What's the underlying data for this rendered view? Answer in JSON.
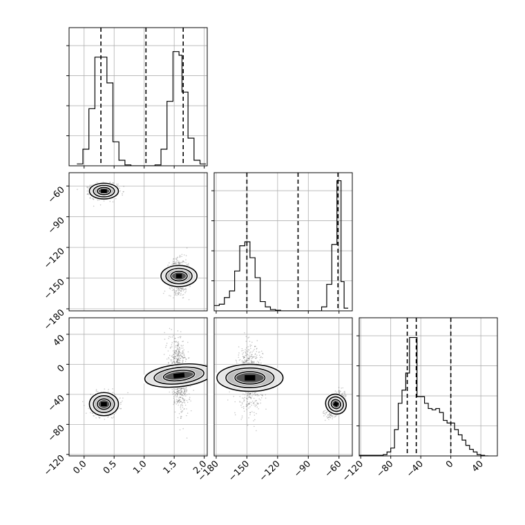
{
  "chart_data": {
    "type": "corner",
    "parameters": [
      "",
      "",
      ""
    ],
    "ranges": [
      [
        -0.25,
        2.05
      ],
      [
        -182,
        -47
      ],
      [
        -122,
        62
      ]
    ],
    "ticks": [
      {
        "values": [
          0.0,
          0.5,
          1.0,
          1.5,
          2.0
        ],
        "labels": [
          "0.0",
          "0.5",
          "1.0",
          "1.5",
          "2.0"
        ]
      },
      {
        "values": [
          -180,
          -150,
          -120,
          -90,
          -60
        ],
        "labels": [
          "−180",
          "−150",
          "−120",
          "−90",
          "−60"
        ]
      },
      {
        "values": [
          -120,
          -80,
          -40,
          0,
          40
        ],
        "labels": [
          "−120",
          "−80",
          "−40",
          "0",
          "40"
        ]
      }
    ],
    "grid": true,
    "histograms": [
      {
        "bins": [
          -0.12,
          -0.02,
          0.08,
          0.18,
          0.28,
          0.38,
          0.48,
          0.58,
          0.68,
          0.78,
          0.88,
          1.18,
          1.28,
          1.38,
          1.48,
          1.53,
          1.58,
          1.63,
          1.73,
          1.83,
          1.93,
          2.03
        ],
        "counts": [
          0.1,
          0.9,
          3.1,
          5.9,
          5.9,
          4.5,
          1.3,
          0.3,
          0.05,
          0,
          0,
          0.05,
          0.9,
          3.5,
          6.2,
          6.2,
          6.0,
          4.0,
          1.5,
          0.3,
          0.1
        ],
        "ymax": 7.5,
        "quantiles": [
          0.28,
          1.03,
          1.65
        ]
      },
      {
        "bins": [
          -182,
          -177,
          -172,
          -167,
          -162,
          -157,
          -152,
          -147,
          -142,
          -137,
          -132,
          -127,
          -122,
          -117,
          -112,
          -77,
          -72,
          -67,
          -62,
          -61,
          -58,
          -55,
          -51
        ],
        "counts": [
          0.04,
          0.05,
          0.1,
          0.15,
          0.3,
          0.49,
          0.52,
          0.4,
          0.25,
          0.07,
          0.03,
          0.01,
          0.005,
          0,
          0,
          0.03,
          0.2,
          0.5,
          0.98,
          0.98,
          0.22,
          0.02
        ],
        "ymax": 1.04,
        "quantiles": [
          -150,
          -100,
          -61
        ]
      },
      {
        "bins": [
          -122,
          -90,
          -85,
          -80,
          -75,
          -70,
          -65,
          -60,
          -55,
          -50,
          -45,
          -40,
          -35,
          -30,
          -25,
          -20,
          -15,
          -10,
          -5,
          0,
          5,
          10,
          15,
          20,
          25,
          30,
          35,
          40,
          45,
          50
        ],
        "counts": [
          0.005,
          0.01,
          0.03,
          0.06,
          0.2,
          0.4,
          0.5,
          0.63,
          0.9,
          0.9,
          0.45,
          0.45,
          0.4,
          0.36,
          0.35,
          0.36,
          0.33,
          0.27,
          0.25,
          0.25,
          0.2,
          0.16,
          0.12,
          0.08,
          0.05,
          0.03,
          0.01,
          0.005,
          0
        ],
        "ymax": 1.05,
        "quantiles": [
          -58,
          -46,
          0
        ]
      }
    ],
    "clusters": [
      {
        "pair": [
          1,
          0
        ],
        "points": [
          {
            "mean": [
              0.33,
              -65
            ],
            "sd": [
              0.11,
              3.5
            ],
            "rho": 0,
            "n": 800
          },
          {
            "mean": [
              1.58,
              -148
            ],
            "sd": [
              0.08,
              8
            ],
            "rho": 0,
            "n": 800
          }
        ]
      },
      {
        "pair": [
          2,
          0
        ],
        "points": [
          {
            "mean": [
              0.33,
              -53
            ],
            "sd": [
              0.11,
              7
            ],
            "rho": 0,
            "n": 800
          },
          {
            "mean": [
              1.58,
              -15
            ],
            "sd": [
              0.08,
              22
            ],
            "rho": -0.35,
            "n": 800
          }
        ]
      },
      {
        "pair": [
          2,
          1
        ],
        "points": [
          {
            "mean": [
              -147,
              -18
            ],
            "sd": [
              6,
              20
            ],
            "rho": 0,
            "n": 800
          },
          {
            "mean": [
              -63,
              -53
            ],
            "sd": [
              4,
              7
            ],
            "rho": 0.55,
            "n": 800
          }
        ]
      }
    ],
    "contour_levels": [
      1.0,
      1.6,
      2.2
    ]
  }
}
